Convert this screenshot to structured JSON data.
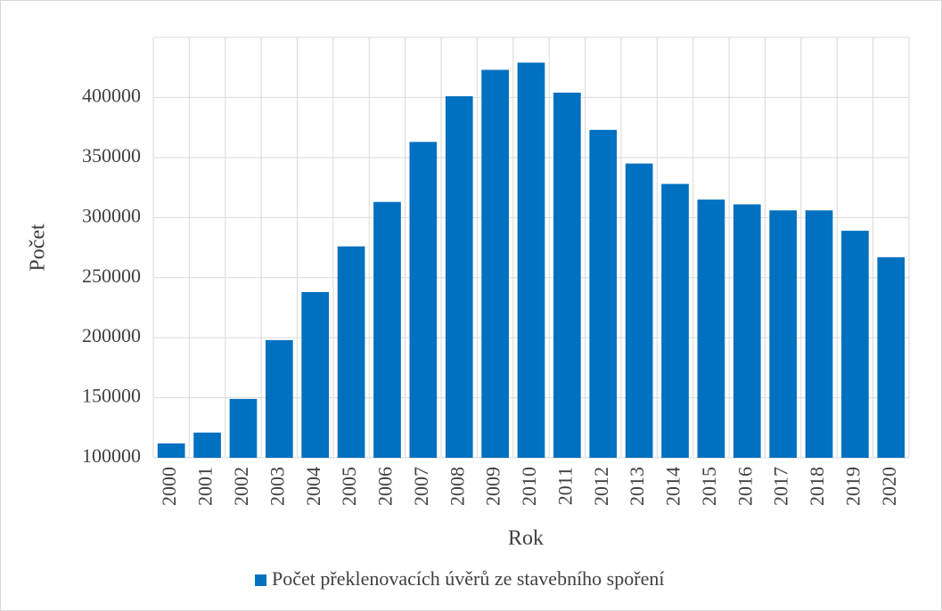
{
  "chart_data": {
    "type": "bar",
    "x_label": "Rok",
    "y_label": "Počet",
    "categories": [
      "2000",
      "2001",
      "2002",
      "2003",
      "2004",
      "2005",
      "2006",
      "2007",
      "2008",
      "2009",
      "2010",
      "2011",
      "2012",
      "2013",
      "2014",
      "2015",
      "2016",
      "2017",
      "2018",
      "2019",
      "2020"
    ],
    "series": [
      {
        "name": "Počet překlenovacích úvěrů ze stavebního spoření",
        "color": "#0070c0",
        "values": [
          112000,
          121000,
          149000,
          198000,
          238000,
          276000,
          313000,
          363000,
          401000,
          423000,
          429000,
          404000,
          373000,
          345000,
          328000,
          315000,
          311000,
          306000,
          306000,
          289000,
          267000
        ]
      }
    ],
    "ylim": [
      100000,
      450000
    ],
    "yticks": [
      100000,
      150000,
      200000,
      250000,
      300000,
      350000,
      400000
    ],
    "grid": true,
    "legend": "bottom"
  }
}
